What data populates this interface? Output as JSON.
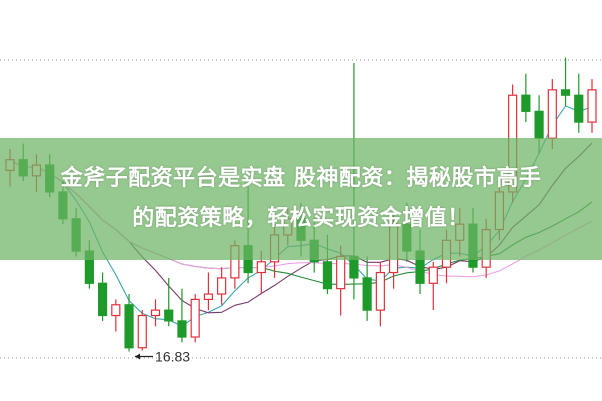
{
  "overlay": {
    "line1": "金斧子配资平台是实盘 股神配资：揭秘股市高手",
    "line2": "的配资策略，轻松实现资金增值！"
  },
  "chart_data": {
    "type": "candlestick",
    "title": "",
    "low_label": "16.83",
    "ylim": [
      16.3,
      23.0
    ],
    "grid": "dotted horizontal lines at top and at low",
    "colors": {
      "up": "#e0303a",
      "down": "#1e9a2a",
      "ma5": "#3aa6b0",
      "ma10": "#7a3a70",
      "ma20": "#2a8a3a",
      "ma30": "#f0a0e8"
    },
    "candles": [
      [
        20.2,
        20.6,
        19.9,
        20.4
      ],
      [
        20.4,
        20.7,
        20.0,
        20.1
      ],
      [
        20.1,
        20.5,
        19.8,
        20.3
      ],
      [
        20.3,
        20.5,
        19.7,
        19.8
      ],
      [
        19.8,
        20.0,
        19.2,
        19.3
      ],
      [
        19.3,
        19.5,
        18.6,
        18.7
      ],
      [
        18.7,
        18.9,
        18.0,
        18.1
      ],
      [
        18.1,
        18.3,
        17.4,
        17.5
      ],
      [
        17.5,
        17.8,
        17.2,
        17.7
      ],
      [
        17.7,
        17.9,
        16.83,
        16.9
      ],
      [
        16.9,
        17.6,
        16.85,
        17.5
      ],
      [
        17.5,
        17.8,
        17.3,
        17.6
      ],
      [
        17.6,
        18.2,
        17.3,
        17.4
      ],
      [
        17.4,
        18.0,
        17.0,
        17.1
      ],
      [
        17.1,
        17.9,
        17.0,
        17.8
      ],
      [
        17.8,
        18.3,
        17.6,
        17.9
      ],
      [
        17.9,
        18.4,
        17.7,
        18.2
      ],
      [
        18.2,
        18.9,
        18.0,
        18.8
      ],
      [
        18.8,
        19.9,
        18.1,
        18.3
      ],
      [
        18.3,
        18.7,
        17.9,
        18.5
      ],
      [
        18.5,
        19.2,
        18.2,
        19.0
      ],
      [
        19.0,
        19.5,
        18.8,
        19.3
      ],
      [
        19.3,
        19.6,
        18.6,
        18.9
      ],
      [
        18.9,
        19.3,
        18.3,
        18.5
      ],
      [
        18.5,
        19.0,
        17.9,
        18.0
      ],
      [
        18.0,
        18.8,
        17.5,
        18.6
      ],
      [
        18.6,
        22.2,
        17.8,
        18.2
      ],
      [
        18.2,
        18.6,
        17.4,
        17.6
      ],
      [
        17.6,
        18.5,
        17.3,
        18.3
      ],
      [
        18.3,
        19.4,
        18.0,
        19.2
      ],
      [
        19.2,
        19.6,
        18.5,
        18.7
      ],
      [
        18.7,
        19.1,
        17.9,
        18.1
      ],
      [
        18.1,
        18.5,
        17.6,
        18.4
      ],
      [
        18.4,
        19.1,
        18.1,
        18.9
      ],
      [
        18.9,
        19.5,
        18.6,
        19.2
      ],
      [
        19.2,
        19.5,
        18.3,
        18.4
      ],
      [
        18.4,
        19.3,
        18.2,
        19.1
      ],
      [
        19.1,
        20.0,
        18.9,
        19.8
      ],
      [
        19.8,
        21.8,
        19.6,
        21.6
      ],
      [
        21.6,
        22.0,
        21.1,
        21.3
      ],
      [
        21.3,
        21.6,
        20.5,
        20.8
      ],
      [
        20.8,
        21.9,
        20.6,
        21.7
      ],
      [
        21.7,
        22.3,
        21.4,
        21.6
      ],
      [
        21.6,
        22.0,
        20.9,
        21.1
      ],
      [
        21.1,
        21.9,
        20.9,
        21.7
      ]
    ],
    "moving_averages": [
      5,
      10,
      20,
      30
    ]
  }
}
